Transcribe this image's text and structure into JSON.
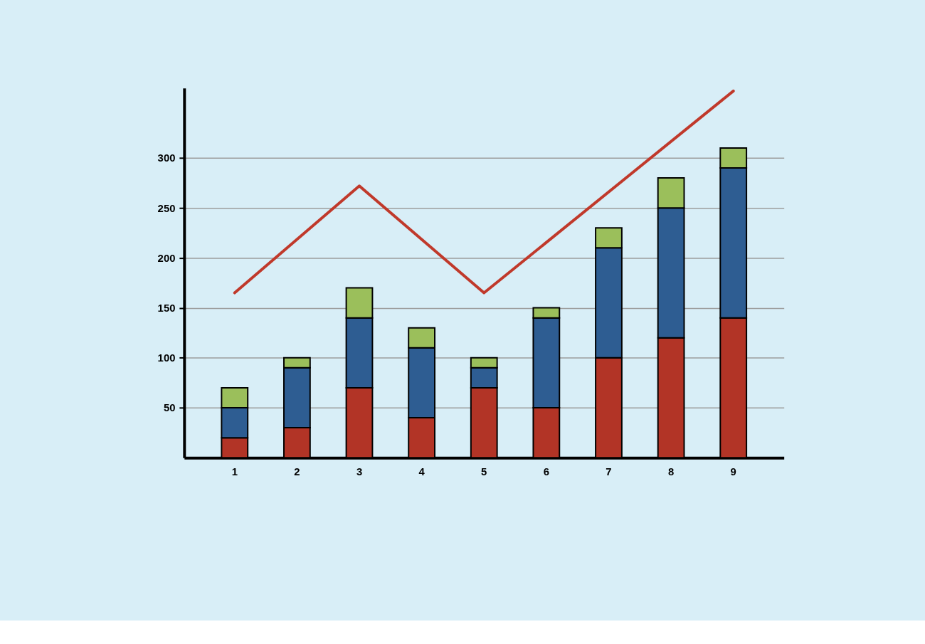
{
  "chart_data": {
    "type": "bar",
    "stacked": true,
    "categories": [
      "1",
      "2",
      "3",
      "4",
      "5",
      "6",
      "7",
      "8",
      "9"
    ],
    "series": [
      {
        "color": "#b23426",
        "values": [
          20,
          30,
          70,
          40,
          70,
          50,
          100,
          120,
          140
        ]
      },
      {
        "color": "#2e5d92",
        "values": [
          30,
          60,
          70,
          70,
          20,
          90,
          110,
          130,
          150
        ]
      },
      {
        "color": "#9bbf5b",
        "values": [
          20,
          10,
          30,
          20,
          10,
          10,
          20,
          30,
          20
        ]
      },
      {
        "type": "line",
        "color": "#c0392b",
        "x": [
          "1",
          "3",
          "5",
          "9"
        ],
        "values": [
          165,
          272,
          165,
          367
        ],
        "line_style": "solid"
      }
    ],
    "ylim": [
      0,
      370
    ],
    "yticks": [
      50,
      100,
      150,
      200,
      250,
      300
    ],
    "grid": "y"
  }
}
